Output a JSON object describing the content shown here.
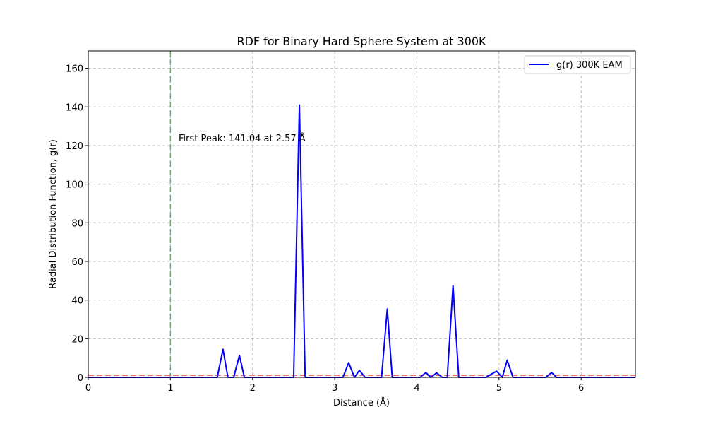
{
  "chart_data": {
    "type": "line",
    "title": "RDF for Binary Hard Sphere System at 300K",
    "xlabel": "Distance (Å)",
    "ylabel": "Radial Distribution Function, g(r)",
    "xlim": [
      0,
      6.66
    ],
    "ylim": [
      0,
      169
    ],
    "xticks": [
      0,
      1,
      2,
      3,
      4,
      5,
      6
    ],
    "yticks": [
      0,
      20,
      40,
      60,
      80,
      100,
      120,
      140,
      160
    ],
    "grid": true,
    "legend_position": "top-right",
    "series": [
      {
        "name": "g(r) 300K EAM",
        "color": "#0000ff",
        "x": [
          0,
          1.57,
          1.64,
          1.7,
          1.77,
          1.84,
          1.9,
          2.5,
          2.57,
          2.64,
          3.1,
          3.17,
          3.24,
          3.3,
          3.37,
          3.57,
          3.64,
          3.7,
          4.04,
          4.11,
          4.17,
          4.24,
          4.31,
          4.37,
          4.44,
          4.51,
          4.84,
          4.97,
          5.04,
          5.1,
          5.17,
          5.57,
          5.64,
          5.7,
          6.66
        ],
        "y": [
          0,
          0,
          14.5,
          0,
          0,
          11.4,
          0,
          0,
          141.04,
          0,
          0,
          7.6,
          0,
          3.6,
          0,
          0,
          35.4,
          0,
          0,
          2.5,
          0,
          2.3,
          0,
          0,
          47.4,
          0,
          0,
          3.2,
          0,
          8.9,
          0,
          0,
          2.5,
          0,
          0
        ]
      }
    ],
    "reference_lines": [
      {
        "orientation": "vertical",
        "value": 1.0,
        "color": "#2ca02c",
        "style": "dashed"
      },
      {
        "orientation": "horizontal",
        "value": 1.0,
        "color": "#ff0000",
        "style": "dashed"
      }
    ],
    "annotation": {
      "text": "First Peak: 141.04 at 2.57 Å",
      "x": 1.1,
      "y": 124
    }
  }
}
